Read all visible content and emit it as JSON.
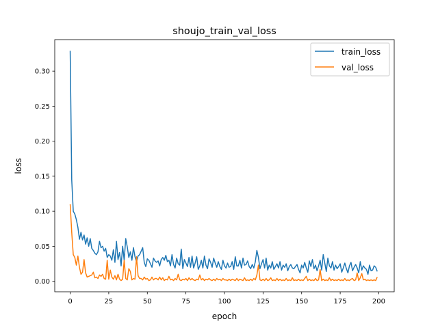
{
  "chart_data": {
    "type": "line",
    "title": "shoujo_train_val_loss",
    "xlabel": "epoch",
    "ylabel": "loss",
    "xlim": [
      -10,
      210
    ],
    "ylim": [
      -0.015,
      0.345
    ],
    "xticks": [
      0,
      25,
      50,
      75,
      100,
      125,
      150,
      175,
      200
    ],
    "yticks": [
      0.0,
      0.05,
      0.1,
      0.15,
      0.2,
      0.25,
      0.3
    ],
    "ytick_labels": [
      "0.00",
      "0.05",
      "0.10",
      "0.15",
      "0.20",
      "0.25",
      "0.30"
    ],
    "grid": false,
    "legend_position": "top-right",
    "series": [
      {
        "name": "train_loss",
        "color": "#1f77b4",
        "x": [
          0,
          1,
          2,
          3,
          4,
          5,
          6,
          7,
          8,
          9,
          10,
          11,
          12,
          13,
          14,
          15,
          16,
          17,
          18,
          19,
          20,
          21,
          22,
          23,
          24,
          25,
          26,
          27,
          28,
          29,
          30,
          31,
          32,
          33,
          34,
          35,
          36,
          37,
          38,
          39,
          40,
          41,
          42,
          43,
          44,
          45,
          46,
          47,
          48,
          49,
          50,
          51,
          52,
          53,
          54,
          55,
          56,
          57,
          58,
          59,
          60,
          61,
          62,
          63,
          64,
          65,
          66,
          67,
          68,
          69,
          70,
          71,
          72,
          73,
          74,
          75,
          76,
          77,
          78,
          79,
          80,
          81,
          82,
          83,
          84,
          85,
          86,
          87,
          88,
          89,
          90,
          91,
          92,
          93,
          94,
          95,
          96,
          97,
          98,
          99,
          100,
          101,
          102,
          103,
          104,
          105,
          106,
          107,
          108,
          109,
          110,
          111,
          112,
          113,
          114,
          115,
          116,
          117,
          118,
          119,
          120,
          121,
          122,
          123,
          124,
          125,
          126,
          127,
          128,
          129,
          130,
          131,
          132,
          133,
          134,
          135,
          136,
          137,
          138,
          139,
          140,
          141,
          142,
          143,
          144,
          145,
          146,
          147,
          148,
          149,
          150,
          151,
          152,
          153,
          154,
          155,
          156,
          157,
          158,
          159,
          160,
          161,
          162,
          163,
          164,
          165,
          166,
          167,
          168,
          169,
          170,
          171,
          172,
          173,
          174,
          175,
          176,
          177,
          178,
          179,
          180,
          181,
          182,
          183,
          184,
          185,
          186,
          187,
          188,
          189,
          190,
          191,
          192,
          193,
          194,
          195,
          196,
          197,
          198,
          199
        ],
        "values": [
          0.329,
          0.145,
          0.1,
          0.096,
          0.088,
          0.077,
          0.06,
          0.07,
          0.059,
          0.066,
          0.053,
          0.062,
          0.05,
          0.061,
          0.047,
          0.044,
          0.04,
          0.038,
          0.042,
          0.057,
          0.048,
          0.05,
          0.043,
          0.047,
          0.034,
          0.038,
          0.036,
          0.03,
          0.045,
          0.027,
          0.057,
          0.031,
          0.041,
          0.022,
          0.05,
          0.03,
          0.061,
          0.049,
          0.034,
          0.042,
          0.03,
          0.048,
          0.035,
          0.028,
          0.036,
          0.038,
          0.043,
          0.048,
          0.027,
          0.021,
          0.032,
          0.03,
          0.025,
          0.02,
          0.033,
          0.029,
          0.027,
          0.029,
          0.022,
          0.031,
          0.034,
          0.03,
          0.037,
          0.028,
          0.03,
          0.022,
          0.038,
          0.024,
          0.019,
          0.033,
          0.025,
          0.023,
          0.046,
          0.018,
          0.031,
          0.026,
          0.021,
          0.034,
          0.02,
          0.036,
          0.019,
          0.026,
          0.035,
          0.017,
          0.022,
          0.03,
          0.019,
          0.036,
          0.023,
          0.018,
          0.032,
          0.027,
          0.02,
          0.033,
          0.026,
          0.02,
          0.028,
          0.021,
          0.017,
          0.03,
          0.022,
          0.019,
          0.026,
          0.02,
          0.021,
          0.028,
          0.017,
          0.035,
          0.022,
          0.022,
          0.03,
          0.019,
          0.033,
          0.023,
          0.024,
          0.029,
          0.021,
          0.018,
          0.024,
          0.019,
          0.028,
          0.044,
          0.034,
          0.018,
          0.025,
          0.031,
          0.019,
          0.033,
          0.016,
          0.023,
          0.019,
          0.028,
          0.017,
          0.021,
          0.025,
          0.019,
          0.028,
          0.016,
          0.023,
          0.02,
          0.025,
          0.015,
          0.021,
          0.024,
          0.019,
          0.018,
          0.021,
          0.024,
          0.017,
          0.012,
          0.023,
          0.019,
          0.027,
          0.019,
          0.013,
          0.029,
          0.021,
          0.031,
          0.018,
          0.023,
          0.015,
          0.022,
          0.03,
          0.016,
          0.038,
          0.026,
          0.014,
          0.033,
          0.022,
          0.019,
          0.028,
          0.016,
          0.023,
          0.018,
          0.021,
          0.025,
          0.013,
          0.019,
          0.026,
          0.018,
          0.012,
          0.022,
          0.027,
          0.015,
          0.02,
          0.024,
          0.019,
          0.012,
          0.028,
          0.016,
          0.022,
          0.019,
          0.017,
          0.01,
          0.023,
          0.015,
          0.016,
          0.022,
          0.02,
          0.014
        ]
      },
      {
        "name": "val_loss",
        "color": "#ff7f0e",
        "x": [
          0,
          1,
          2,
          3,
          4,
          5,
          6,
          7,
          8,
          9,
          10,
          11,
          12,
          13,
          14,
          15,
          16,
          17,
          18,
          19,
          20,
          21,
          22,
          23,
          24,
          25,
          26,
          27,
          28,
          29,
          30,
          31,
          32,
          33,
          34,
          35,
          36,
          37,
          38,
          39,
          40,
          41,
          42,
          43,
          44,
          45,
          46,
          47,
          48,
          49,
          50,
          51,
          52,
          53,
          54,
          55,
          56,
          57,
          58,
          59,
          60,
          61,
          62,
          63,
          64,
          65,
          66,
          67,
          68,
          69,
          70,
          71,
          72,
          73,
          74,
          75,
          76,
          77,
          78,
          79,
          80,
          81,
          82,
          83,
          84,
          85,
          86,
          87,
          88,
          89,
          90,
          91,
          92,
          93,
          94,
          95,
          96,
          97,
          98,
          99,
          100,
          101,
          102,
          103,
          104,
          105,
          106,
          107,
          108,
          109,
          110,
          111,
          112,
          113,
          114,
          115,
          116,
          117,
          118,
          119,
          120,
          121,
          122,
          123,
          124,
          125,
          126,
          127,
          128,
          129,
          130,
          131,
          132,
          133,
          134,
          135,
          136,
          137,
          138,
          139,
          140,
          141,
          142,
          143,
          144,
          145,
          146,
          147,
          148,
          149,
          150,
          151,
          152,
          153,
          154,
          155,
          156,
          157,
          158,
          159,
          160,
          161,
          162,
          163,
          164,
          165,
          166,
          167,
          168,
          169,
          170,
          171,
          172,
          173,
          174,
          175,
          176,
          177,
          178,
          179,
          180,
          181,
          182,
          183,
          184,
          185,
          186,
          187,
          188,
          189,
          190,
          191,
          192,
          193,
          194,
          195,
          196,
          197,
          198,
          199
        ],
        "values": [
          0.11,
          0.07,
          0.038,
          0.034,
          0.023,
          0.036,
          0.02,
          0.01,
          0.013,
          0.031,
          0.012,
          0.006,
          0.007,
          0.008,
          0.009,
          0.013,
          0.005,
          0.006,
          0.004,
          0.009,
          0.007,
          0.01,
          0.004,
          0.003,
          0.03,
          0.003,
          0.016,
          0.006,
          0.003,
          0.008,
          0.002,
          0.01,
          0.003,
          0.001,
          0.003,
          0.03,
          0.004,
          0.002,
          0.018,
          0.014,
          0.002,
          0.004,
          0.003,
          0.035,
          0.008,
          0.004,
          0.004,
          0.002,
          0.006,
          0.003,
          0.004,
          0.001,
          0.002,
          0.006,
          0.002,
          0.004,
          0.004,
          0.002,
          0.006,
          0.002,
          0.005,
          0.001,
          0.003,
          0.002,
          0.007,
          0.002,
          0.003,
          0.001,
          0.004,
          0.002,
          0.01,
          0.002,
          0.001,
          0.003,
          0.002,
          0.004,
          0.001,
          0.005,
          0.002,
          0.004,
          0.002,
          0.001,
          0.003,
          0.002,
          0.009,
          0.002,
          0.004,
          0.001,
          0.003,
          0.002,
          0.004,
          0.002,
          0.001,
          0.003,
          0.001,
          0.004,
          0.002,
          0.003,
          0.001,
          0.004,
          0.002,
          0.002,
          0.001,
          0.003,
          0.001,
          0.003,
          0.002,
          0.001,
          0.004,
          0.001,
          0.003,
          0.002,
          0.001,
          0.005,
          0.001,
          0.002,
          0.001,
          0.003,
          0.001,
          0.004,
          0.002,
          0.009,
          0.023,
          0.002,
          0.001,
          0.003,
          0.001,
          0.004,
          0.001,
          0.002,
          0.005,
          0.001,
          0.002,
          0.001,
          0.004,
          0.001,
          0.003,
          0.001,
          0.002,
          0.001,
          0.004,
          0.001,
          0.002,
          0.001,
          0.005,
          0.001,
          0.002,
          0.001,
          0.003,
          0.001,
          0.002,
          0.001,
          0.004,
          0.007,
          0.001,
          0.003,
          0.001,
          0.002,
          0.001,
          0.004,
          0.001,
          0.002,
          0.017,
          0.001,
          0.003,
          0.001,
          0.002,
          0.001,
          0.005,
          0.001,
          0.003,
          0.001,
          0.002,
          0.001,
          0.003,
          0.001,
          0.002,
          0.001,
          0.004,
          0.001,
          0.002,
          0.001,
          0.003,
          0.004,
          0.001,
          0.002,
          0.012,
          0.001,
          0.005,
          0.011,
          0.002,
          0.003,
          0.001,
          0.002,
          0.001,
          0.002,
          0.001,
          0.002,
          0.001,
          0.006
        ]
      }
    ]
  }
}
